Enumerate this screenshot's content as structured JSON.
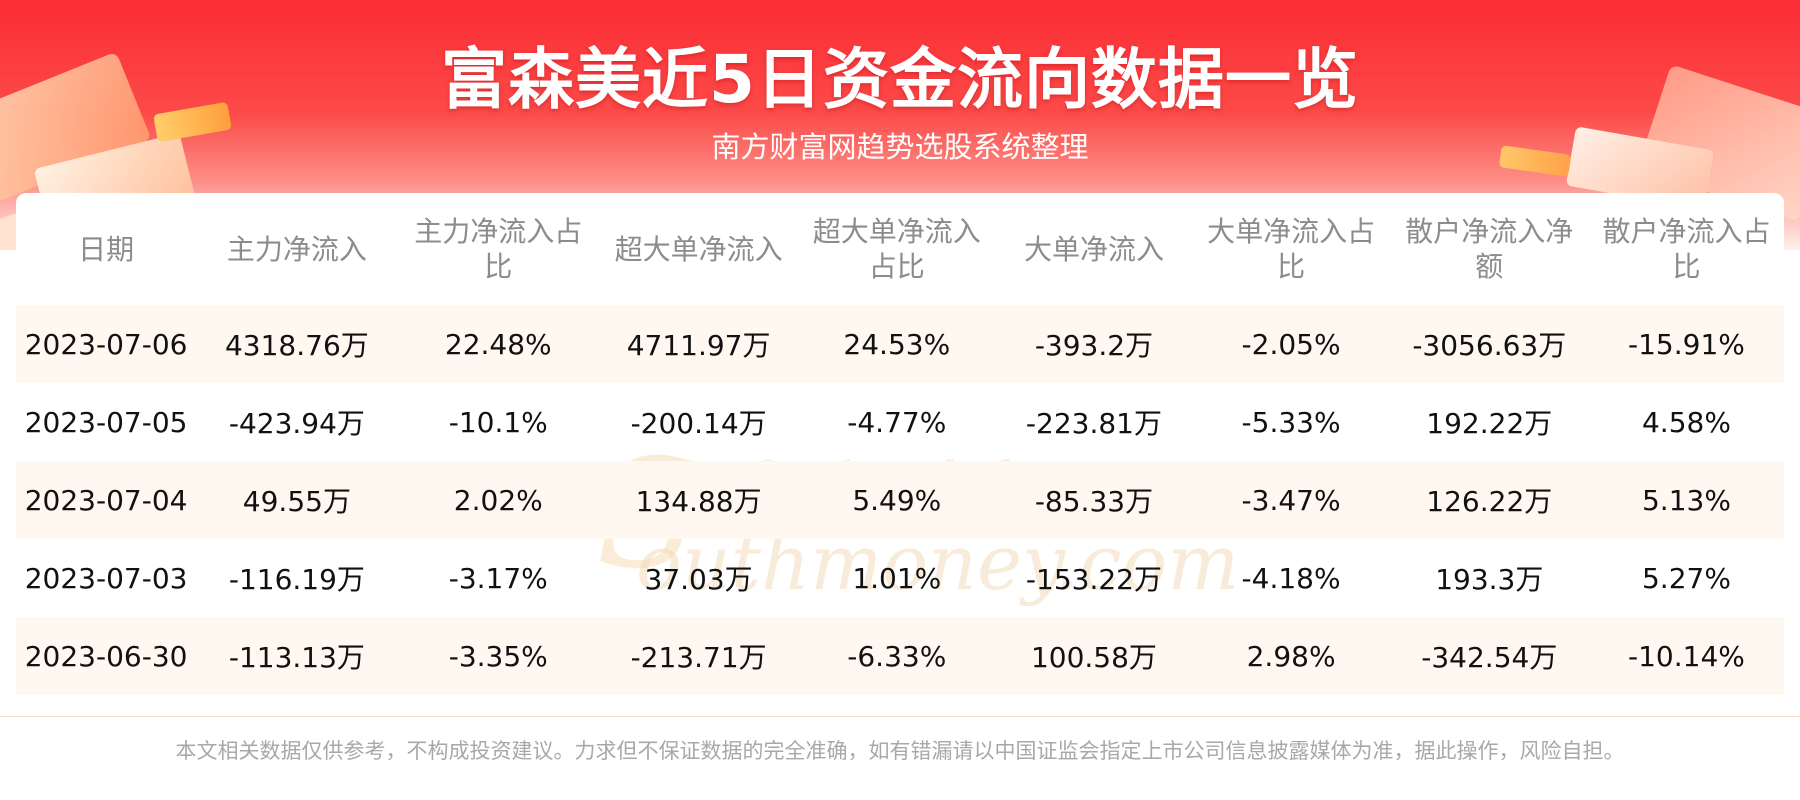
{
  "header": {
    "title": "富森美近5日资金流向数据一览",
    "subtitle": "南方财富网趋势选股系统整理"
  },
  "watermark": {
    "cn": "南方财富网",
    "en": "outhmoney.com",
    "s": "S"
  },
  "table": {
    "columns": [
      "日期",
      "主力净流入",
      "主力净流入占比",
      "超大单净流入",
      "超大单净流入占比",
      "大单净流入",
      "大单净流入占比",
      "散户净流入净额",
      "散户净流入占比"
    ],
    "rows": [
      [
        "2023-07-06",
        "4318.76万",
        "22.48%",
        "4711.97万",
        "24.53%",
        "-393.2万",
        "-2.05%",
        "-3056.63万",
        "-15.91%"
      ],
      [
        "2023-07-05",
        "-423.94万",
        "-10.1%",
        "-200.14万",
        "-4.77%",
        "-223.81万",
        "-5.33%",
        "192.22万",
        "4.58%"
      ],
      [
        "2023-07-04",
        "49.55万",
        "2.02%",
        "134.88万",
        "5.49%",
        "-85.33万",
        "-3.47%",
        "126.22万",
        "5.13%"
      ],
      [
        "2023-07-03",
        "-116.19万",
        "-3.17%",
        "37.03万",
        "1.01%",
        "-153.22万",
        "-4.18%",
        "193.3万",
        "5.27%"
      ],
      [
        "2023-06-30",
        "-113.13万",
        "-3.35%",
        "-213.71万",
        "-6.33%",
        "100.58万",
        "2.98%",
        "-342.54万",
        "-10.14%"
      ]
    ]
  },
  "footer": {
    "disclaimer": "本文相关数据仅供参考，不构成投资建议。力求但不保证数据的完全准确，如有错漏请以中国证监会指定上市公司信息披露媒体为准，据此操作，风险自担。"
  },
  "colors": {
    "banner_red": "#fb2d35",
    "header_text": "#8c8c8c",
    "stripe": "#fff8f1"
  }
}
